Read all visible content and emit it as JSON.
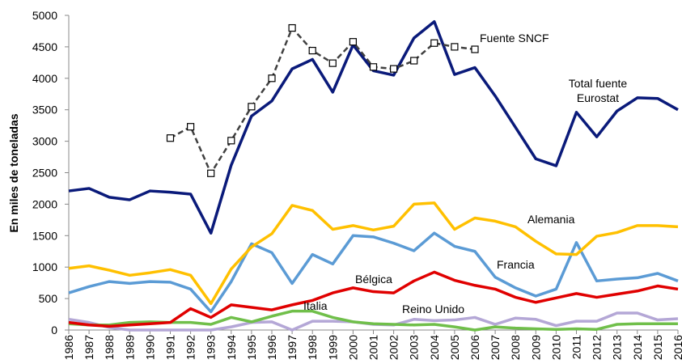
{
  "chart_data": {
    "type": "line",
    "y_label": "En miles de toneladas",
    "categories": [
      "1986",
      "1987",
      "1988",
      "1989",
      "1990",
      "1991",
      "1992",
      "1993",
      "1994",
      "1995",
      "1996",
      "1997",
      "1998",
      "1999",
      "2000",
      "2001",
      "2002",
      "2003",
      "2004",
      "2005",
      "2006",
      "2007",
      "2008",
      "2009",
      "2010",
      "2011",
      "2012",
      "2013",
      "2014",
      "2015",
      "2016"
    ],
    "ylim": [
      0,
      5000
    ],
    "yticks": [
      0,
      500,
      1000,
      1500,
      2000,
      2500,
      3000,
      3500,
      4000,
      4500,
      5000
    ],
    "grid": false,
    "series": [
      {
        "name": "Total fuente Eurostat",
        "color": "#0a1a7a",
        "values": [
          2210,
          2250,
          2110,
          2070,
          2210,
          2190,
          2160,
          1540,
          2620,
          3400,
          3640,
          4150,
          4300,
          3780,
          4530,
          4120,
          4050,
          4640,
          4900,
          4060,
          4170,
          3720,
          3220,
          2720,
          2610,
          3460,
          3070,
          3480,
          3690,
          3680,
          3500
        ]
      },
      {
        "name": "Fuente SNCF",
        "color": "#404040",
        "dashed": true,
        "markers": true,
        "values": [
          null,
          null,
          null,
          null,
          null,
          3050,
          3230,
          2490,
          3010,
          3550,
          4000,
          4800,
          4440,
          4240,
          4580,
          4180,
          4150,
          4280,
          4560,
          4500,
          4460,
          null,
          null,
          null,
          null,
          null,
          null,
          null,
          null,
          null,
          null
        ]
      },
      {
        "name": "Alemania",
        "color": "#ffc000",
        "values": [
          980,
          1020,
          950,
          870,
          910,
          960,
          870,
          420,
          970,
          1320,
          1530,
          1980,
          1900,
          1600,
          1660,
          1590,
          1650,
          2000,
          2020,
          1600,
          1780,
          1730,
          1640,
          1410,
          1210,
          1200,
          1490,
          1550,
          1660,
          1660,
          1640
        ]
      },
      {
        "name": "Francia",
        "color": "#5b9bd5",
        "values": [
          590,
          690,
          770,
          740,
          770,
          760,
          650,
          290,
          770,
          1370,
          1230,
          740,
          1200,
          1050,
          1500,
          1480,
          1380,
          1260,
          1540,
          1330,
          1250,
          840,
          670,
          540,
          650,
          1390,
          780,
          810,
          830,
          900,
          780
        ]
      },
      {
        "name": "Bélgica",
        "color": "#e00000",
        "values": [
          120,
          80,
          60,
          80,
          100,
          120,
          340,
          200,
          400,
          360,
          320,
          400,
          470,
          590,
          670,
          610,
          590,
          780,
          920,
          790,
          710,
          650,
          520,
          440,
          510,
          580,
          520,
          570,
          620,
          700,
          650
        ]
      },
      {
        "name": "Italia",
        "color": "#70bf4a",
        "values": [
          100,
          80,
          80,
          120,
          130,
          120,
          120,
          90,
          200,
          130,
          220,
          300,
          300,
          200,
          130,
          100,
          90,
          80,
          90,
          50,
          0,
          50,
          30,
          20,
          10,
          20,
          10,
          90,
          100,
          100,
          100
        ]
      },
      {
        "name": "Reino Unido",
        "color": "#b4a7d6",
        "values": [
          170,
          120,
          40,
          0,
          0,
          0,
          0,
          0,
          50,
          120,
          130,
          0,
          140,
          140,
          130,
          90,
          80,
          170,
          150,
          160,
          200,
          90,
          190,
          170,
          70,
          140,
          140,
          270,
          270,
          160,
          180
        ]
      }
    ]
  }
}
